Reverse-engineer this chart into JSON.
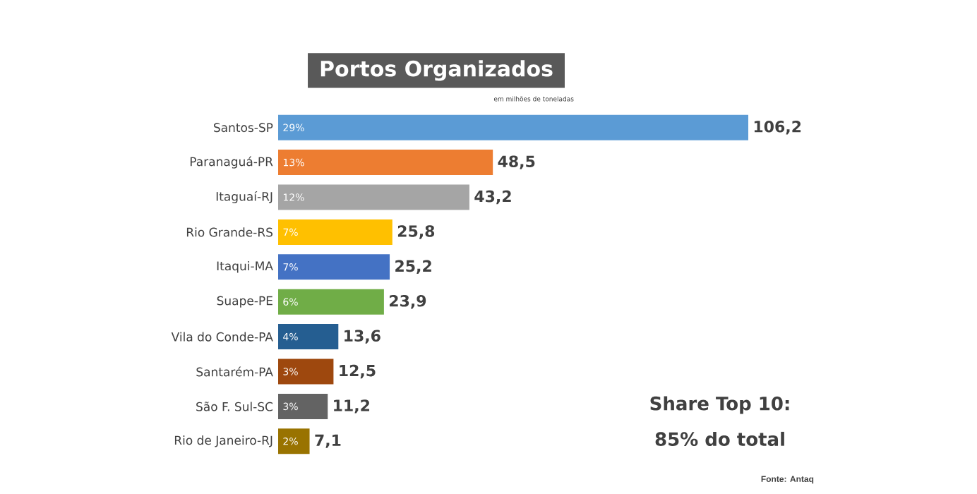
{
  "chart_data": {
    "type": "bar",
    "orientation": "horizontal",
    "title": "Portos Organizados",
    "subtitle": "em milhões de toneladas",
    "categories": [
      "Santos-SP",
      "Paranaguá-PR",
      "Itaguaí-RJ",
      "Rio Grande-RS",
      "Itaqui-MA",
      "Suape-PE",
      "Vila do Conde-PA",
      "Santarém-PA",
      "São F. Sul-SC",
      "Rio de Janeiro-RJ"
    ],
    "values": [
      106.2,
      48.5,
      43.2,
      25.8,
      25.2,
      23.9,
      13.6,
      12.5,
      11.2,
      7.1
    ],
    "value_labels": [
      "106,2",
      "48,5",
      "43,2",
      "25,8",
      "25,2",
      "23,9",
      "13,6",
      "12,5",
      "11,2",
      "7,1"
    ],
    "colors": [
      "#5b9bd5",
      "#ed7d31",
      "#a5a5a5",
      "#ffc000",
      "#4472c4",
      "#70ad47",
      "#255e91",
      "#9e480e",
      "#636363",
      "#997300"
    ],
    "annotations": [
      {
        "text": "29%",
        "y": "Santos-SP"
      },
      {
        "text": "13%",
        "y": "Paranaguá-PR"
      },
      {
        "text": "12%",
        "y": "Itaguaí-RJ"
      },
      {
        "text": "7%",
        "y": "Rio Grande-RS"
      },
      {
        "text": "7%",
        "y": "Itaqui-MA"
      },
      {
        "text": "6%",
        "y": "Suape-PE"
      },
      {
        "text": "4%",
        "y": "Vila do Conde-PA"
      },
      {
        "text": "3%",
        "y": "Santarém-PA"
      },
      {
        "text": "3%",
        "y": "São F. Sul-SC"
      },
      {
        "text": "2%",
        "y": "Rio de Janeiro-RJ"
      },
      "Share Top 10:",
      "85% do total",
      "Fonte: Antaq"
    ]
  }
}
